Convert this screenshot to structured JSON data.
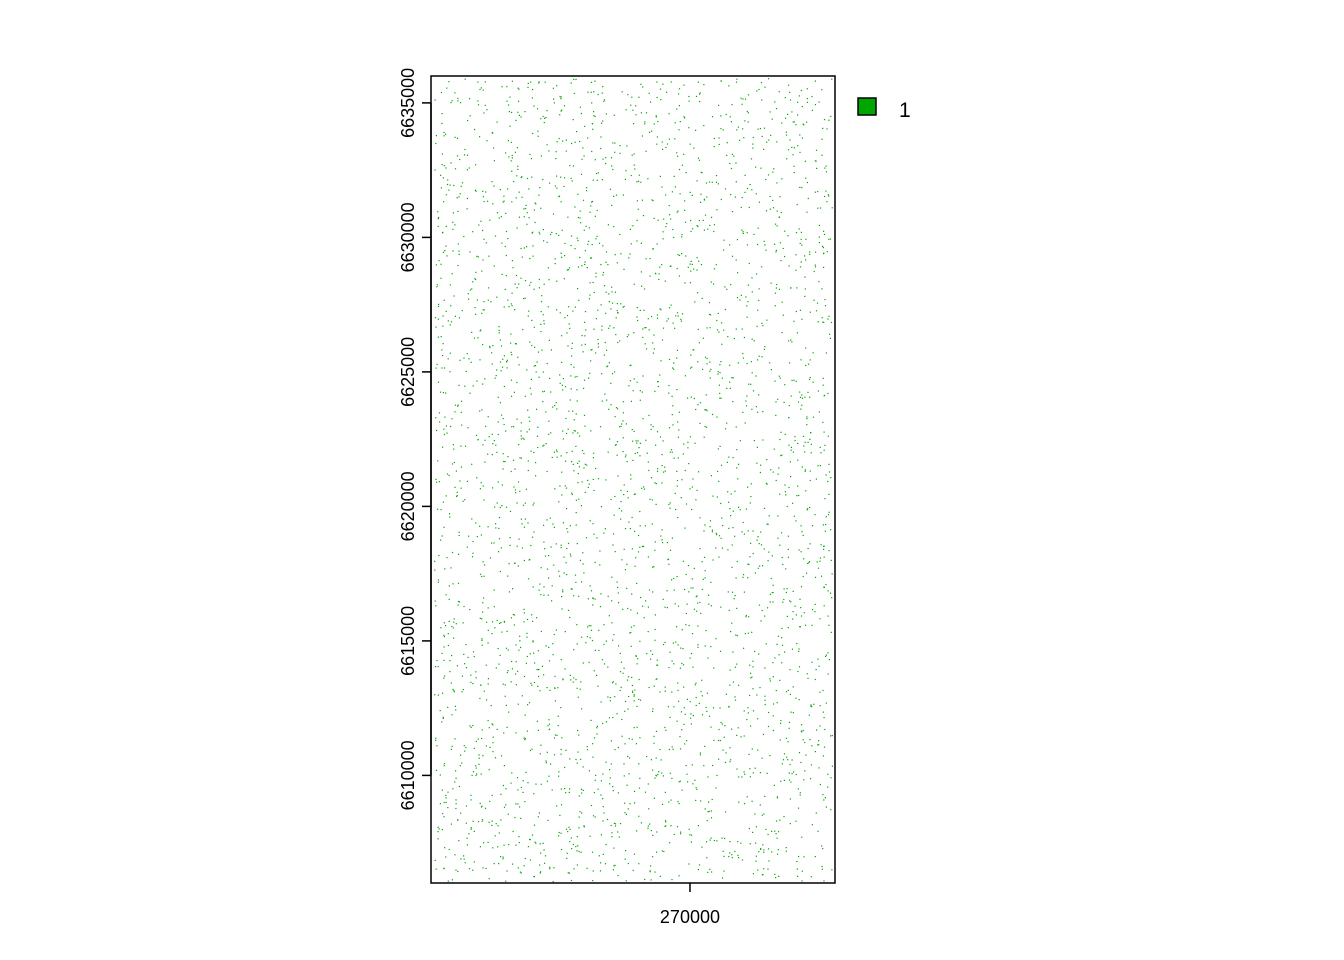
{
  "chart_data": {
    "type": "raster",
    "title": "",
    "xlabel": "",
    "ylabel": "",
    "xlim": [
      265000,
      272800
    ],
    "ylim": [
      6606000,
      6636000
    ],
    "x_ticks": [
      {
        "value": 270000,
        "label": "270000"
      }
    ],
    "y_ticks": [
      {
        "value": 6610000,
        "label": "6610000"
      },
      {
        "value": 6615000,
        "label": "6615000"
      },
      {
        "value": 6620000,
        "label": "6620000"
      },
      {
        "value": 6625000,
        "label": "6625000"
      },
      {
        "value": 6630000,
        "label": "6630000"
      },
      {
        "value": 6635000,
        "label": "6635000"
      }
    ],
    "legend": {
      "placement": "top-right-outside",
      "entries": [
        {
          "label": "1",
          "color": "#00a600"
        }
      ]
    },
    "cell_color": "#00a600",
    "background_color": "#ffffff",
    "pattern": "sparse scattered single cells with value 1 across the extent"
  }
}
